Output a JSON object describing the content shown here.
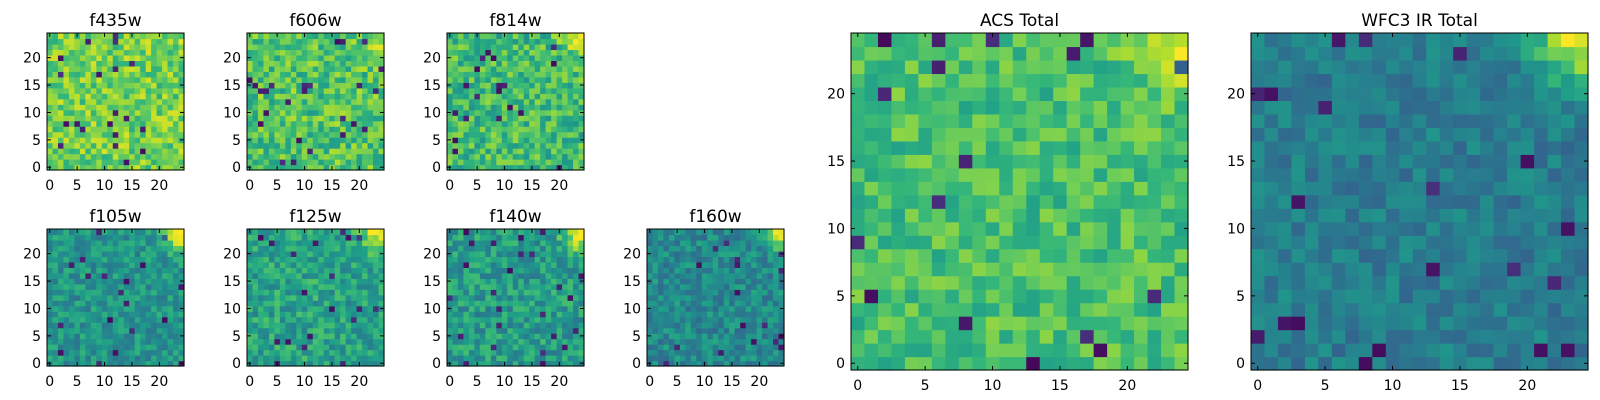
{
  "chart_data": [
    {
      "type": "heatmap",
      "title": "f435w",
      "xticks": [
        "0",
        "5",
        "10",
        "15",
        "20"
      ],
      "yticks": [
        "0",
        "5",
        "10",
        "15",
        "20"
      ],
      "xlim": [
        0,
        25
      ],
      "ylim": [
        0,
        25
      ],
      "colormap": "viridis",
      "cells": "25x25 noise map, mean 0.78, noise 0.16, bright corner upper-right 0.05",
      "seed": 11,
      "mean": 0.78,
      "noise": 0.16,
      "corner": 0.05,
      "blockSize": 1
    },
    {
      "type": "heatmap",
      "title": "f606w",
      "xticks": [
        "0",
        "5",
        "10",
        "15",
        "20"
      ],
      "yticks": [
        "0",
        "5",
        "10",
        "15",
        "20"
      ],
      "xlim": [
        0,
        25
      ],
      "ylim": [
        0,
        25
      ],
      "colormap": "viridis",
      "cells": "25x25 noise map, mean 0.72, noise 0.17, bright corner upper-right 0.22",
      "seed": 23,
      "mean": 0.72,
      "noise": 0.17,
      "corner": 0.22,
      "blockSize": 1
    },
    {
      "type": "heatmap",
      "title": "f814w",
      "xticks": [
        "0",
        "5",
        "10",
        "15",
        "20"
      ],
      "yticks": [
        "0",
        "5",
        "10",
        "15",
        "20"
      ],
      "xlim": [
        0,
        25
      ],
      "ylim": [
        0,
        25
      ],
      "colormap": "viridis",
      "cells": "25x25 noise map, mean 0.68, noise 0.17, bright corner upper-right 0.35",
      "seed": 37,
      "mean": 0.68,
      "noise": 0.17,
      "corner": 0.35,
      "blockSize": 1
    },
    {
      "type": "heatmap",
      "title": "f105w",
      "xticks": [
        "0",
        "5",
        "10",
        "15",
        "20"
      ],
      "yticks": [
        "0",
        "5",
        "10",
        "15",
        "20"
      ],
      "xlim": [
        0,
        25
      ],
      "ylim": [
        0,
        25
      ],
      "colormap": "viridis",
      "cells": "25x25 noise map, mean 0.52, noise 0.13, bright corner upper-right 0.5",
      "seed": 41,
      "mean": 0.52,
      "noise": 0.13,
      "corner": 0.5,
      "blockSize": 1
    },
    {
      "type": "heatmap",
      "title": "f125w",
      "xticks": [
        "0",
        "5",
        "10",
        "15",
        "20"
      ],
      "yticks": [
        "0",
        "5",
        "10",
        "15",
        "20"
      ],
      "xlim": [
        0,
        25
      ],
      "ylim": [
        0,
        25
      ],
      "colormap": "viridis",
      "cells": "25x25 noise map, mean 0.58, noise 0.15, bright corner upper-right 0.45",
      "seed": 53,
      "mean": 0.58,
      "noise": 0.15,
      "corner": 0.45,
      "blockSize": 1
    },
    {
      "type": "heatmap",
      "title": "f140w",
      "xticks": [
        "0",
        "5",
        "10",
        "15",
        "20"
      ],
      "yticks": [
        "0",
        "5",
        "10",
        "15",
        "20"
      ],
      "xlim": [
        0,
        25
      ],
      "ylim": [
        0,
        25
      ],
      "colormap": "viridis",
      "cells": "25x25 noise map, mean 0.55, noise 0.15, bright corner upper-right 0.5",
      "seed": 67,
      "mean": 0.55,
      "noise": 0.15,
      "corner": 0.5,
      "blockSize": 1
    },
    {
      "type": "heatmap",
      "title": "f160w",
      "xticks": [
        "0",
        "5",
        "10",
        "15",
        "20"
      ],
      "yticks": [
        "0",
        "5",
        "10",
        "15",
        "20"
      ],
      "xlim": [
        0,
        25
      ],
      "ylim": [
        0,
        25
      ],
      "colormap": "viridis",
      "cells": "25x25 noise map, mean 0.47, noise 0.13, bright corner upper-right 0.55",
      "seed": 79,
      "mean": 0.47,
      "noise": 0.13,
      "corner": 0.55,
      "blockSize": 1
    },
    {
      "type": "heatmap",
      "title": "ACS Total",
      "xticks": [
        "0",
        "5",
        "10",
        "15",
        "20"
      ],
      "yticks": [
        "0",
        "5",
        "10",
        "15",
        "20"
      ],
      "xlim": [
        0,
        25
      ],
      "ylim": [
        0,
        25
      ],
      "colormap": "viridis",
      "cells": "25x25 noise map, mean 0.7, noise 0.13, bright corner upper-right 0.3",
      "seed": 97,
      "mean": 0.7,
      "noise": 0.13,
      "corner": 0.3,
      "blockSize": 1
    },
    {
      "type": "heatmap",
      "title": "WFC3 IR Total",
      "xticks": [
        "0",
        "5",
        "10",
        "15",
        "20"
      ],
      "yticks": [
        "0",
        "5",
        "10",
        "15",
        "20"
      ],
      "xlim": [
        0,
        25
      ],
      "ylim": [
        0,
        25
      ],
      "colormap": "viridis",
      "cells": "25x25 noise map, mean 0.42, noise 0.1, bright corner upper-right 0.55",
      "seed": 113,
      "mean": 0.42,
      "noise": 0.1,
      "corner": 0.55,
      "blockSize": 1
    }
  ]
}
